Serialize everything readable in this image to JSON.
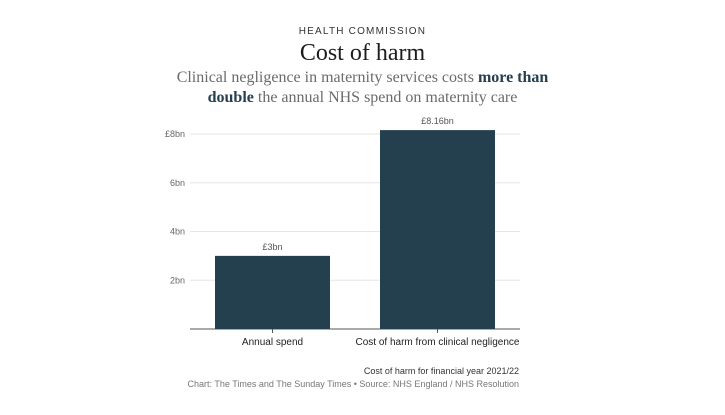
{
  "header": {
    "kicker": "HEALTH COMMISSION",
    "title": "Cost of harm",
    "subtitle_part1": "Clinical negligence in maternity services costs ",
    "subtitle_emph1": "more than",
    "subtitle_emph2": "double",
    "subtitle_part2": " the annual NHS spend on maternity care"
  },
  "footer": {
    "note": "Cost of harm for financial year 2021/22",
    "source": "Chart: The Times and The Sunday Times • Source: NHS England / NHS Resolution"
  },
  "colors": {
    "bar": "#243f4e",
    "grid": "#e6e6e6",
    "axis": "#555555"
  },
  "chart_data": {
    "type": "bar",
    "categories": [
      "Annual spend",
      "Cost of harm from clinical negligence"
    ],
    "values": [
      3,
      8.16
    ],
    "value_labels": [
      "£3bn",
      "£8.16bn"
    ],
    "yticks": [
      2,
      4,
      6,
      8
    ],
    "ytick_labels": [
      "2bn",
      "4bn",
      "6bn",
      "£8bn"
    ],
    "ylim": [
      0,
      8
    ],
    "title": "Cost of harm",
    "xlabel": "",
    "ylabel": "",
    "grid": true,
    "legend": "none"
  }
}
